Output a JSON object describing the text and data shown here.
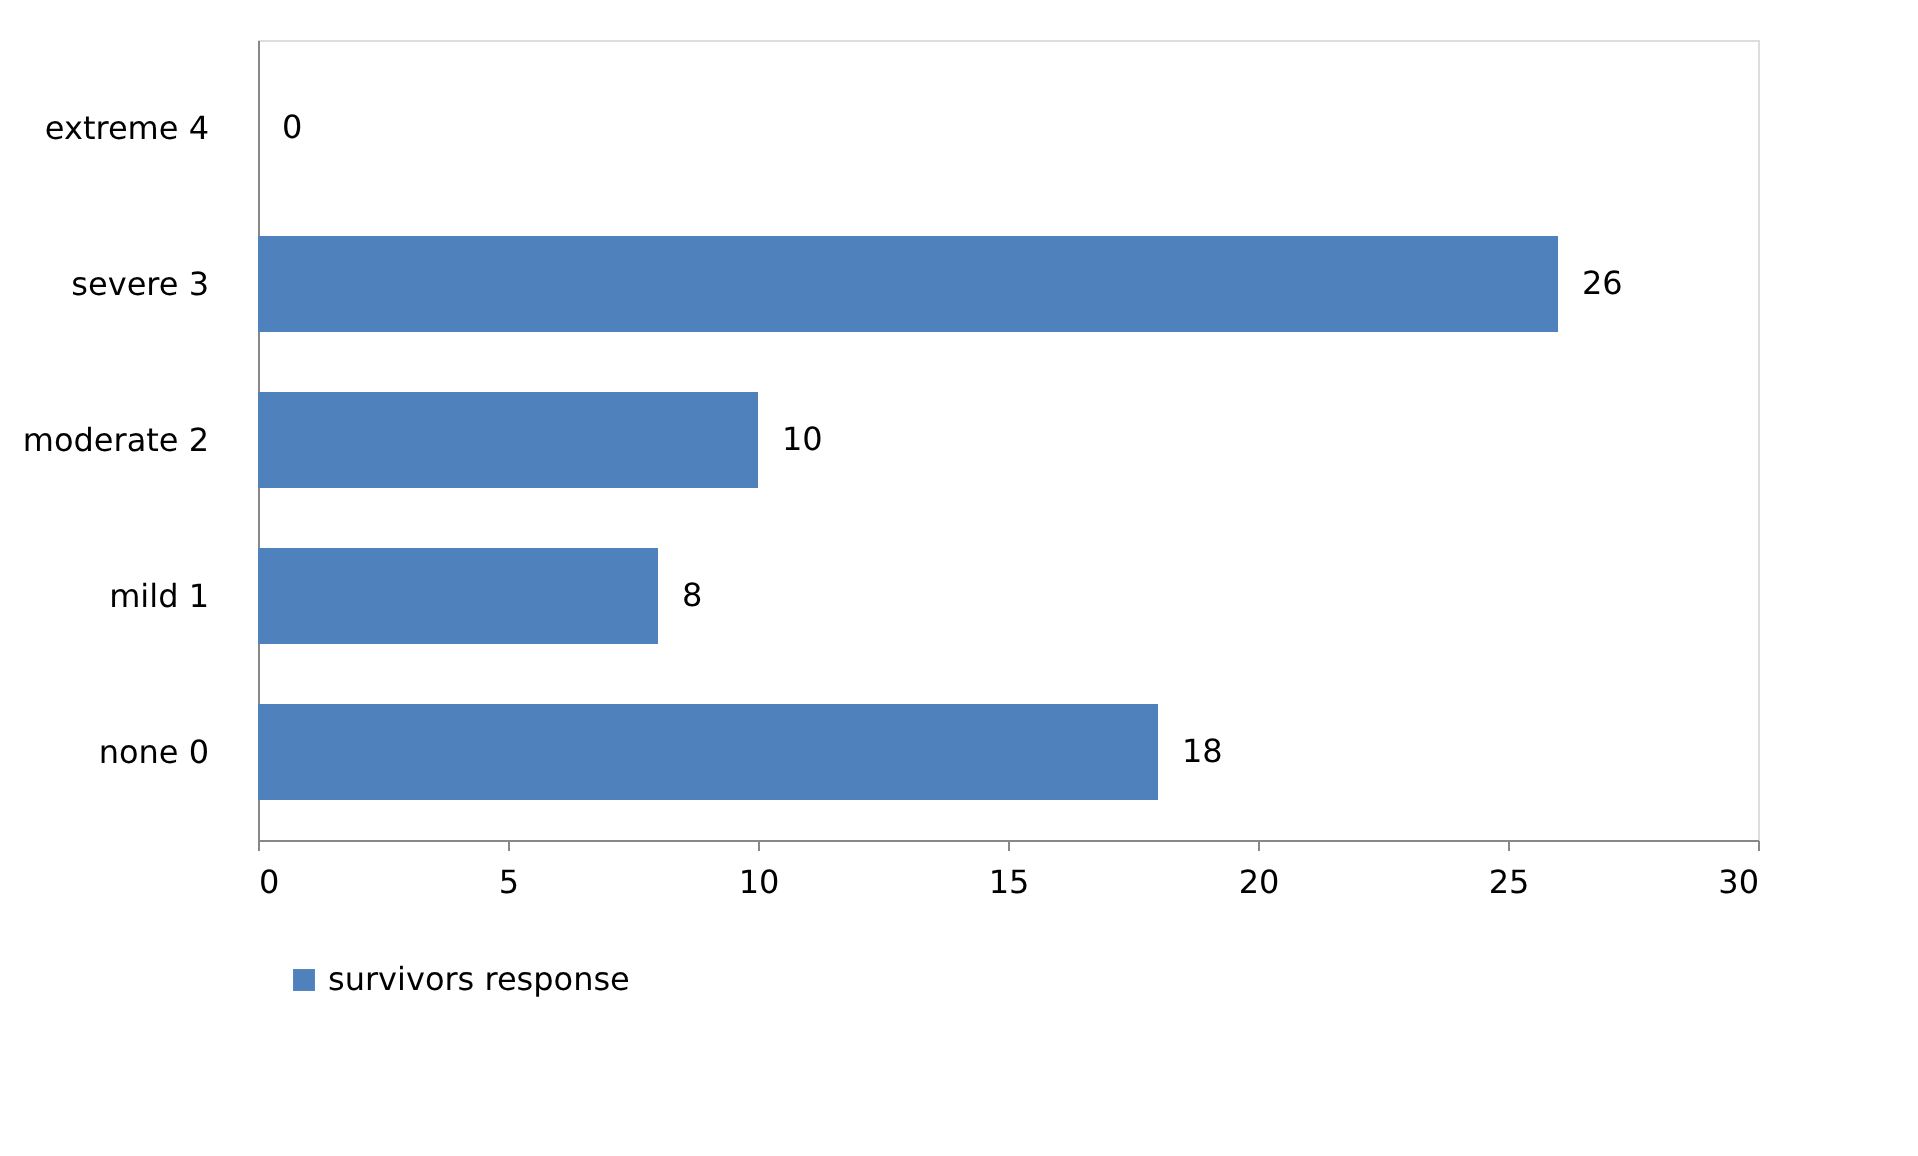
{
  "chart_data": {
    "type": "bar",
    "orientation": "horizontal",
    "categories": [
      "extreme 4",
      "severe 3",
      "moderate 2",
      "mild 1",
      "none 0"
    ],
    "series": [
      {
        "name": "survivors response",
        "color": "#4f81bd",
        "values": [
          0,
          26,
          10,
          8,
          18
        ]
      }
    ],
    "xlim": [
      0,
      30
    ],
    "xticks": [
      0,
      5,
      10,
      15,
      20,
      25,
      30
    ],
    "data_labels": true,
    "legend": "bottom",
    "grid": false
  }
}
